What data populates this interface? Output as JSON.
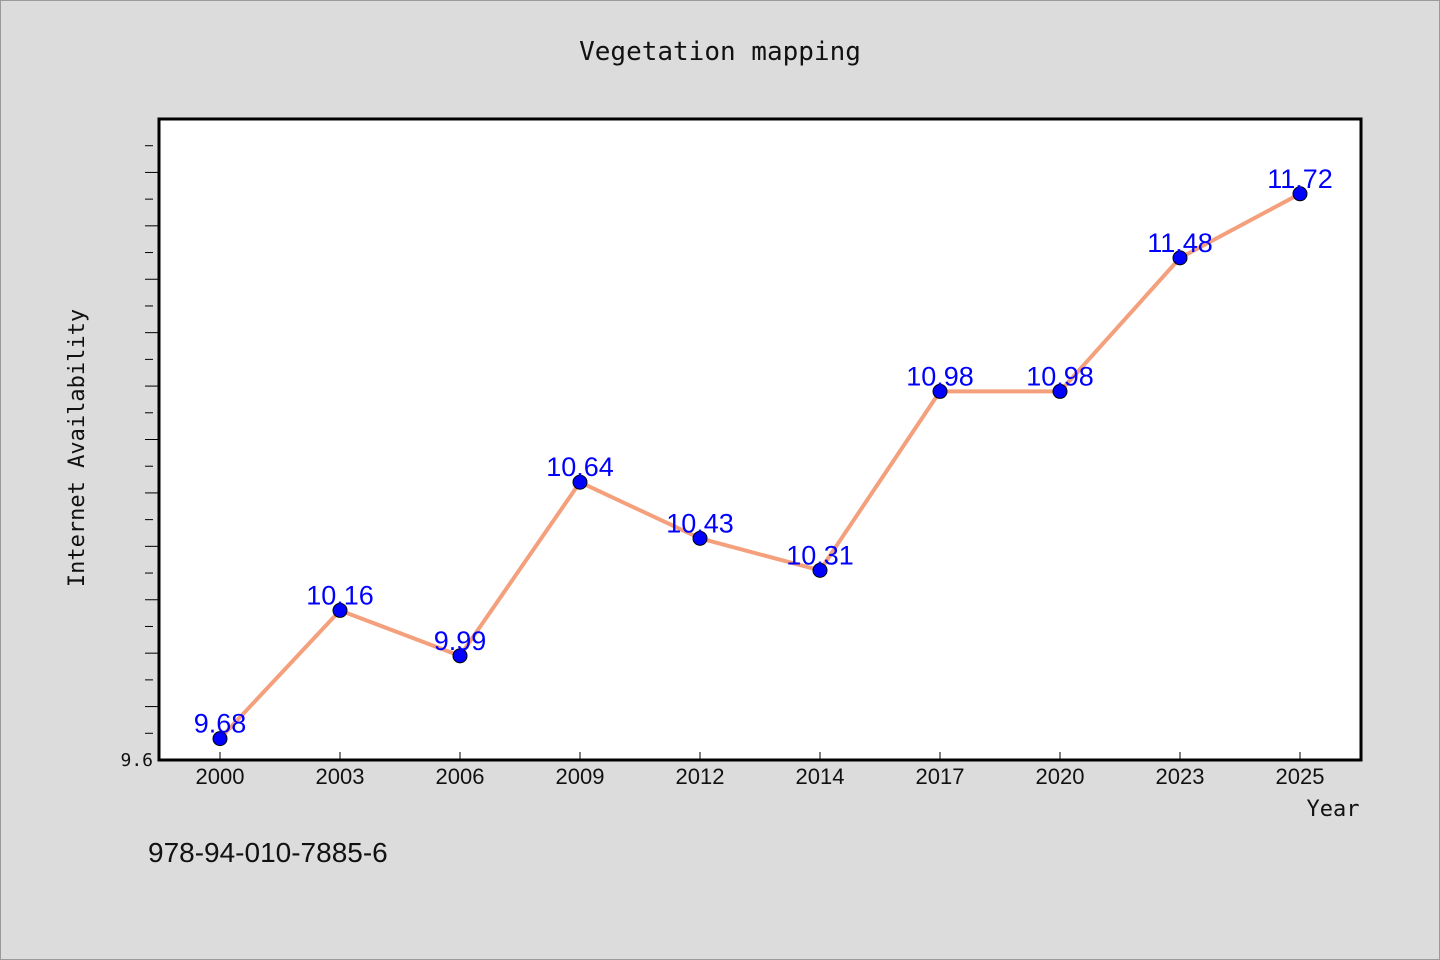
{
  "page": {
    "footer_code": "978-94-010-7885-6"
  },
  "colors": {
    "background": "#dcdcdc",
    "plot_background": "#ffffff",
    "line": "#f4a07c",
    "marker": "#0000ff",
    "data_label": "#0000ff"
  },
  "chart_data": {
    "type": "line",
    "title": "Vegetation mapping",
    "xlabel": "Year",
    "ylabel": "Internet Availability",
    "categories": [
      "2000",
      "2003",
      "2006",
      "2009",
      "2012",
      "2014",
      "2017",
      "2020",
      "2023",
      "2025"
    ],
    "series": [
      {
        "values": [
          9.68,
          10.16,
          9.99,
          10.64,
          10.43,
          10.31,
          10.98,
          10.98,
          11.48,
          11.72
        ]
      }
    ],
    "data_labels": [
      "9.68",
      "10.16",
      "9.99",
      "10.64",
      "10.43",
      "10.31",
      "10.98",
      "10.98",
      "11.48",
      "11.72"
    ],
    "ylim": [
      9.6,
      12.0
    ],
    "y_tick_labels": [
      "9.6"
    ],
    "y_major_step": 0.2,
    "y_minor_step": 0.1,
    "grid": false,
    "legend": "none"
  }
}
